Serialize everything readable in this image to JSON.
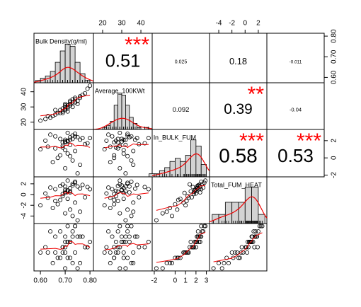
{
  "chart_data": {
    "type": "correlation-matrix",
    "variables": [
      {
        "name": "Bulk Density(g/ml)",
        "lim": [
          0.574,
          0.814
        ],
        "ticks": [
          {
            "value": 0.6,
            "label": "0.60"
          },
          {
            "value": 0.7,
            "label": "0.70"
          },
          {
            "value": 0.8,
            "label": "0.80"
          }
        ],
        "hist": {
          "bins": [
            0.58,
            0.6,
            0.62,
            0.64,
            0.66,
            0.68,
            0.7,
            0.72,
            0.74,
            0.76,
            0.78,
            0.8
          ],
          "counts": [
            1,
            2,
            3,
            5,
            9,
            14,
            17,
            16,
            9,
            4,
            1
          ]
        }
      },
      {
        "name": "Average_100KWt",
        "lim": [
          15.2,
          45.9
        ],
        "ticks": [
          20,
          30,
          40
        ],
        "hist": {
          "bins": [
            18,
            20,
            22,
            24,
            26,
            28,
            30,
            32,
            34,
            36,
            38,
            40,
            42,
            44,
            46
          ],
          "counts": [
            0,
            1,
            2,
            4,
            12,
            18,
            17,
            12,
            6,
            3,
            1,
            0,
            1,
            0
          ]
        }
      },
      {
        "name": "ln_BULK_FUM",
        "lim": [
          -2.2,
          3.3
        ],
        "ticks": [
          -2,
          0,
          1,
          2,
          3
        ],
        "yticks": [
          -2,
          0,
          2
        ],
        "hist": {
          "bins": [
            -2.5,
            -2,
            -1.5,
            -1,
            -0.5,
            0,
            0.5,
            1,
            1.5,
            2,
            2.5,
            3
          ],
          "counts": [
            1,
            1,
            2,
            3,
            5,
            6,
            5,
            7,
            12,
            10,
            4
          ]
        }
      },
      {
        "name": "Total_FUM_HEAT",
        "lim": [
          -5.4,
          3.3
        ],
        "ticks": [
          -4,
          -2,
          0,
          2
        ],
        "hist": {
          "bins": [
            -5,
            -4,
            -3,
            -2,
            -1,
            0,
            1,
            2,
            3
          ],
          "counts": [
            3,
            3,
            7,
            7,
            7,
            12,
            12,
            3
          ]
        }
      },
      {
        "name": null
      }
    ],
    "correlations": [
      [
        null,
        0.51,
        0.025,
        0.18,
        -0.011
      ],
      [
        null,
        null,
        0.092,
        0.39,
        -0.04
      ],
      [
        null,
        null,
        null,
        0.58,
        0.53
      ],
      [
        null,
        null,
        null,
        null,
        null
      ],
      [
        null,
        null,
        null,
        null,
        null
      ]
    ],
    "stars": [
      [
        null,
        "***",
        null,
        null,
        null
      ],
      [
        null,
        null,
        null,
        "**",
        null
      ],
      [
        null,
        null,
        null,
        "***",
        "***"
      ],
      [
        null,
        null,
        null,
        null,
        null
      ],
      [
        null,
        null,
        null,
        null,
        null
      ]
    ],
    "observations": [
      [
        0.7,
        28,
        1.8,
        0.5,
        5
      ],
      [
        0.72,
        31,
        2.1,
        1.2,
        6
      ],
      [
        0.68,
        26,
        0.3,
        -1.0,
        3
      ],
      [
        0.75,
        34,
        2.4,
        1.5,
        7
      ],
      [
        0.65,
        24,
        -0.5,
        -2.5,
        2
      ],
      [
        0.71,
        30,
        1.9,
        0.8,
        6
      ],
      [
        0.73,
        33,
        2.6,
        2.0,
        8
      ],
      [
        0.69,
        27,
        1.2,
        -0.3,
        4
      ],
      [
        0.74,
        36,
        0.8,
        -1.5,
        4
      ],
      [
        0.62,
        22,
        2.0,
        0.2,
        5
      ],
      [
        0.77,
        38,
        2.3,
        1.8,
        7
      ],
      [
        0.7,
        29,
        -1.2,
        -3.5,
        1
      ],
      [
        0.72,
        32,
        1.5,
        0.6,
        6
      ],
      [
        0.66,
        25,
        2.5,
        1.0,
        7
      ],
      [
        0.79,
        42,
        1.7,
        1.4,
        5
      ],
      [
        0.71,
        31,
        0.5,
        -0.8,
        3
      ],
      [
        0.68,
        28,
        2.2,
        1.6,
        8
      ],
      [
        0.74,
        33,
        2.8,
        2.2,
        9
      ],
      [
        0.6,
        21,
        1.0,
        -2.0,
        4
      ],
      [
        0.73,
        35,
        -0.3,
        -4.0,
        2
      ],
      [
        0.7,
        30,
        1.9,
        0.9,
        6
      ],
      [
        0.76,
        37,
        2.1,
        1.1,
        7
      ],
      [
        0.67,
        26,
        0.0,
        -1.8,
        3
      ],
      [
        0.72,
        34,
        2.4,
        0.4,
        6
      ],
      [
        0.69,
        29,
        1.4,
        1.9,
        5
      ],
      [
        0.75,
        32,
        -1.8,
        -4.8,
        1
      ],
      [
        0.71,
        27,
        2.0,
        0.7,
        6
      ],
      [
        0.64,
        23,
        2.7,
        1.3,
        8
      ],
      [
        0.78,
        39,
        1.6,
        -0.5,
        5
      ],
      [
        0.7,
        31,
        0.9,
        0.3,
        4
      ],
      [
        0.73,
        30,
        2.2,
        1.7,
        7
      ],
      [
        0.66,
        28,
        1.1,
        -1.2,
        4
      ],
      [
        0.74,
        35,
        2.5,
        2.4,
        9
      ],
      [
        0.72,
        33,
        0.2,
        -2.8,
        3
      ],
      [
        0.69,
        26,
        1.8,
        0.1,
        5
      ],
      [
        0.8,
        44,
        2.3,
        1.0,
        6
      ],
      [
        0.71,
        29,
        2.9,
        2.6,
        9
      ],
      [
        0.63,
        24,
        1.3,
        -0.6,
        4
      ],
      [
        0.76,
        36,
        -0.8,
        -3.2,
        2
      ],
      [
        0.7,
        32,
        2.1,
        1.5,
        7
      ]
    ]
  }
}
